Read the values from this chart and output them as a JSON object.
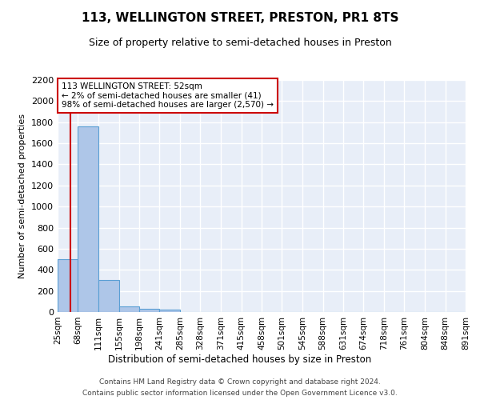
{
  "title": "113, WELLINGTON STREET, PRESTON, PR1 8TS",
  "subtitle": "Size of property relative to semi-detached houses in Preston",
  "xlabel": "Distribution of semi-detached houses by size in Preston",
  "ylabel": "Number of semi-detached properties",
  "footnote1": "Contains HM Land Registry data © Crown copyright and database right 2024.",
  "footnote2": "Contains public sector information licensed under the Open Government Licence v3.0.",
  "annotation_line1": "113 WELLINGTON STREET: 52sqm",
  "annotation_line2": "← 2% of semi-detached houses are smaller (41)",
  "annotation_line3": "98% of semi-detached houses are larger (2,570) →",
  "property_size": 52,
  "bin_edges": [
    25,
    68,
    111,
    155,
    198,
    241,
    285,
    328,
    371,
    415,
    458,
    501,
    545,
    588,
    631,
    674,
    718,
    761,
    804,
    848,
    891
  ],
  "bin_labels": [
    "25sqm",
    "68sqm",
    "111sqm",
    "155sqm",
    "198sqm",
    "241sqm",
    "285sqm",
    "328sqm",
    "371sqm",
    "415sqm",
    "458sqm",
    "501sqm",
    "545sqm",
    "588sqm",
    "631sqm",
    "674sqm",
    "718sqm",
    "761sqm",
    "804sqm",
    "848sqm",
    "891sqm"
  ],
  "bar_heights": [
    500,
    1760,
    305,
    55,
    30,
    20,
    0,
    0,
    0,
    0,
    0,
    0,
    0,
    0,
    0,
    0,
    0,
    0,
    0,
    0
  ],
  "bar_color": "#aec6e8",
  "bar_edge_color": "#5a9fd4",
  "property_line_color": "#cc0000",
  "annotation_box_color": "#cc0000",
  "background_color": "#e8eef8",
  "grid_color": "#ffffff",
  "ylim": [
    0,
    2200
  ],
  "yticks": [
    0,
    200,
    400,
    600,
    800,
    1000,
    1200,
    1400,
    1600,
    1800,
    2000,
    2200
  ]
}
